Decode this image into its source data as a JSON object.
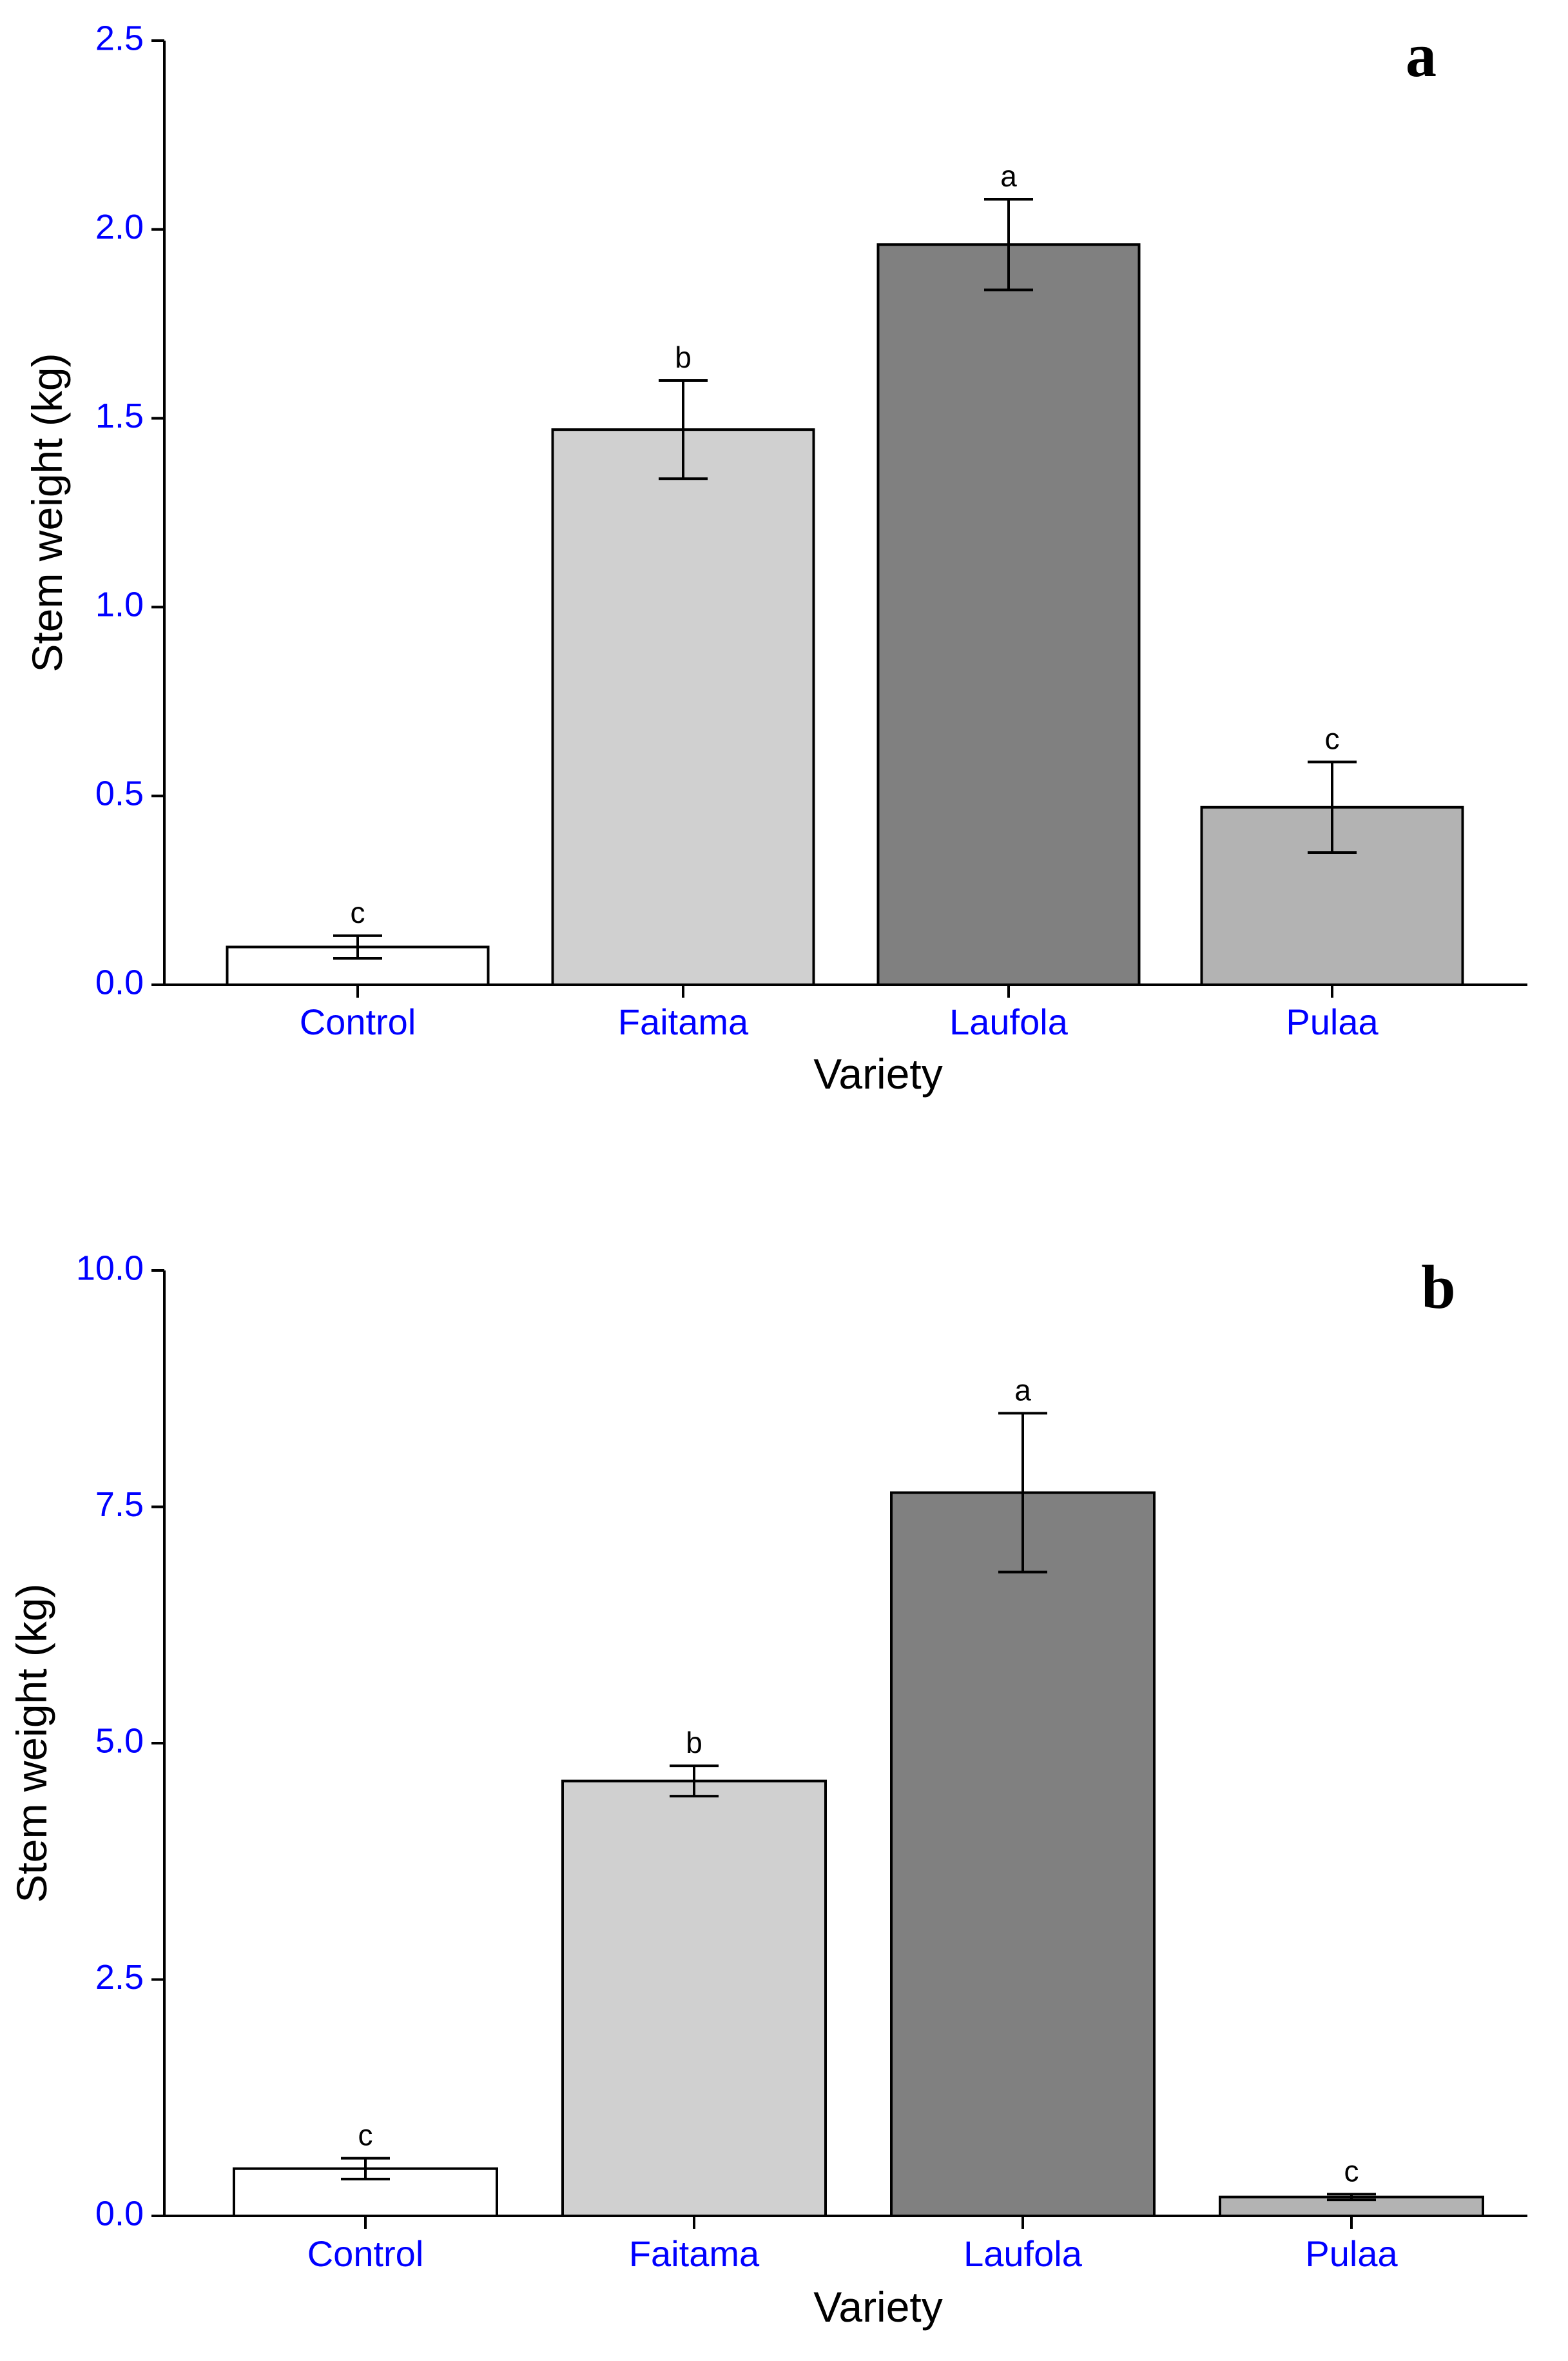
{
  "colors": {
    "tick_label": "#0000ff",
    "bar_fills": [
      "#ffffff",
      "#d0d0d0",
      "#808080",
      "#b3b3b3"
    ]
  },
  "chart_data": [
    {
      "type": "bar",
      "panel_label": "a",
      "xlabel": "Variety",
      "ylabel": "Stem weight (kg)",
      "categories": [
        "Control",
        "Faitama",
        "Laufola",
        "Pulaa"
      ],
      "values": [
        0.1,
        1.47,
        1.96,
        0.47
      ],
      "errors": [
        0.03,
        0.13,
        0.12,
        0.12
      ],
      "significance": [
        "c",
        "b",
        "a",
        "c"
      ],
      "ylim": [
        0,
        2.5
      ],
      "yticks": [
        0.0,
        0.5,
        1.0,
        1.5,
        2.0,
        2.5
      ],
      "ytick_labels": [
        "0.0",
        "0.5",
        "1.0",
        "1.5",
        "2.0",
        "2.5"
      ]
    },
    {
      "type": "bar",
      "panel_label": "b",
      "xlabel": "Variety",
      "ylabel": "Stem weight (kg)",
      "categories": [
        "Control",
        "Faitama",
        "Laufola",
        "Pulaa"
      ],
      "values": [
        0.5,
        4.6,
        7.65,
        0.2
      ],
      "errors": [
        0.11,
        0.16,
        0.84,
        0.03
      ],
      "significance": [
        "c",
        "b",
        "a",
        "c"
      ],
      "ylim": [
        0,
        10
      ],
      "yticks": [
        0.0,
        2.5,
        5.0,
        7.5,
        10.0
      ],
      "ytick_labels": [
        "0.0",
        "2.5",
        "5.0",
        "7.5",
        "10.0"
      ]
    }
  ]
}
